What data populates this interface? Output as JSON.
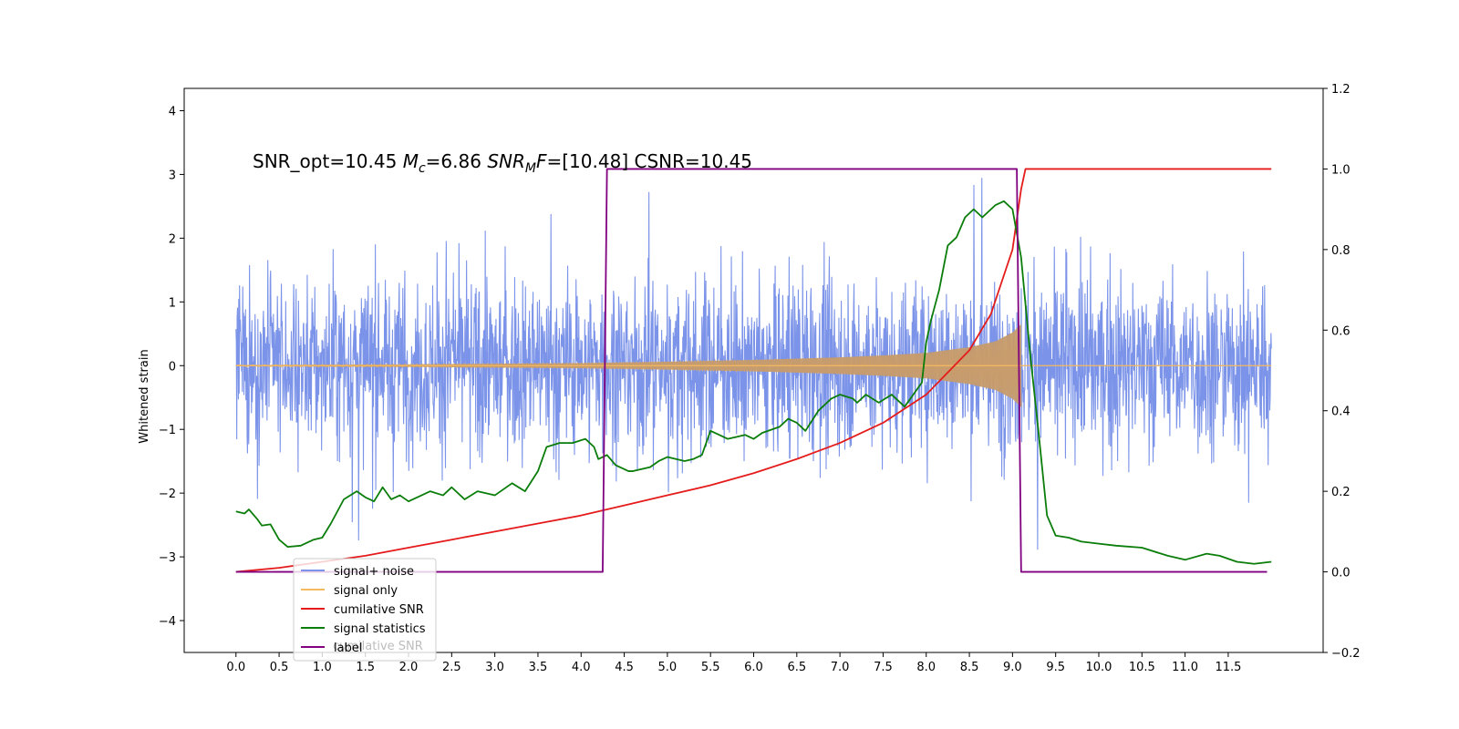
{
  "chart_data": {
    "type": "line",
    "annotation": {
      "snr_opt": "SNR_opt=10.45",
      "mc_symbol": "M",
      "mc_sub": "c",
      "mc_value": "=6.86",
      "snrmf_symbol": "SNR",
      "snrmf_sub": "M",
      "snrmf_tail": "F",
      "snrmf_value": "=[10.48]",
      "csnr": "CSNR=10.45"
    },
    "ylabel": "Whitened strain",
    "xlim": [
      -0.6,
      12.6
    ],
    "ylim": [
      -4.5,
      4.35
    ],
    "y2lim": [
      -0.2,
      1.2
    ],
    "x_ticks": [
      "0.0",
      "0.5",
      "1.0",
      "1.5",
      "2.0",
      "2.5",
      "3.0",
      "3.5",
      "4.0",
      "4.5",
      "5.0",
      "5.5",
      "6.0",
      "6.5",
      "7.0",
      "7.5",
      "8.0",
      "8.5",
      "9.0",
      "9.5",
      "10.0",
      "10.5",
      "11.0",
      "11.5"
    ],
    "y_ticks": [
      "−4",
      "−3",
      "−2",
      "−1",
      "0",
      "1",
      "2",
      "3",
      "4"
    ],
    "y2_ticks": [
      "−0.2",
      "0.0",
      "0.2",
      "0.4",
      "0.6",
      "0.8",
      "1.0",
      "1.2"
    ],
    "y_tick_values": [
      -4,
      -3,
      -2,
      -1,
      0,
      1,
      2,
      3,
      4
    ],
    "y2_tick_values": [
      -0.2,
      0.0,
      0.2,
      0.4,
      0.6,
      0.8,
      1.0,
      1.2
    ],
    "legend": {
      "placement": "lower-left",
      "entries": [
        "signal+ noise",
        "signal only",
        "cumilative SNR",
        "signal statistics",
        "label"
      ],
      "ghost_text": "cumilative SNR"
    },
    "series": [
      {
        "name": "signal+ noise",
        "axis": "left",
        "color": "#7b93e8",
        "description": "noise band approximately +/-1.6 with spikes up to +/-3.5",
        "x_range": [
          0.0,
          12.0
        ],
        "band": 1.6
      },
      {
        "name": "signal only",
        "axis": "left",
        "color": "#f5b95f",
        "description": "chirp growing from ~0.01 to ~0.65 amplitude, ending at 9.1",
        "x_range": [
          0.0,
          9.1
        ],
        "envelope": [
          [
            0.0,
            0.01
          ],
          [
            2.0,
            0.02
          ],
          [
            4.0,
            0.04
          ],
          [
            5.0,
            0.06
          ],
          [
            6.0,
            0.09
          ],
          [
            7.0,
            0.13
          ],
          [
            7.5,
            0.16
          ],
          [
            8.0,
            0.2
          ],
          [
            8.5,
            0.29
          ],
          [
            8.8,
            0.38
          ],
          [
            9.0,
            0.52
          ],
          [
            9.1,
            0.65
          ]
        ]
      },
      {
        "name": "cumilative SNR",
        "axis": "right",
        "color": "#e51b1b",
        "points": [
          [
            0.0,
            0.0
          ],
          [
            0.5,
            0.01
          ],
          [
            1.0,
            0.025
          ],
          [
            1.5,
            0.04
          ],
          [
            2.0,
            0.06
          ],
          [
            2.5,
            0.08
          ],
          [
            3.0,
            0.1
          ],
          [
            3.5,
            0.12
          ],
          [
            4.0,
            0.14
          ],
          [
            4.5,
            0.165
          ],
          [
            5.0,
            0.19
          ],
          [
            5.5,
            0.215
          ],
          [
            6.0,
            0.245
          ],
          [
            6.5,
            0.28
          ],
          [
            7.0,
            0.32
          ],
          [
            7.5,
            0.37
          ],
          [
            8.0,
            0.44
          ],
          [
            8.5,
            0.55
          ],
          [
            8.75,
            0.64
          ],
          [
            9.0,
            0.8
          ],
          [
            9.1,
            0.95
          ],
          [
            9.15,
            1.0
          ],
          [
            12.0,
            1.0
          ]
        ]
      },
      {
        "name": "signal statistics",
        "axis": "right",
        "color": "#0a7d0a",
        "points": [
          [
            0.0,
            0.15
          ],
          [
            0.1,
            0.145
          ],
          [
            0.15,
            0.155
          ],
          [
            0.25,
            0.13
          ],
          [
            0.3,
            0.115
          ],
          [
            0.4,
            0.118
          ],
          [
            0.5,
            0.08
          ],
          [
            0.6,
            0.062
          ],
          [
            0.75,
            0.065
          ],
          [
            0.9,
            0.08
          ],
          [
            1.0,
            0.085
          ],
          [
            1.1,
            0.12
          ],
          [
            1.25,
            0.18
          ],
          [
            1.4,
            0.2
          ],
          [
            1.5,
            0.185
          ],
          [
            1.6,
            0.175
          ],
          [
            1.7,
            0.21
          ],
          [
            1.8,
            0.18
          ],
          [
            1.9,
            0.19
          ],
          [
            2.0,
            0.175
          ],
          [
            2.1,
            0.185
          ],
          [
            2.25,
            0.2
          ],
          [
            2.4,
            0.19
          ],
          [
            2.5,
            0.21
          ],
          [
            2.65,
            0.18
          ],
          [
            2.8,
            0.2
          ],
          [
            3.0,
            0.19
          ],
          [
            3.2,
            0.22
          ],
          [
            3.35,
            0.2
          ],
          [
            3.5,
            0.25
          ],
          [
            3.6,
            0.31
          ],
          [
            3.75,
            0.32
          ],
          [
            3.9,
            0.32
          ],
          [
            4.05,
            0.33
          ],
          [
            4.15,
            0.31
          ],
          [
            4.2,
            0.28
          ],
          [
            4.3,
            0.29
          ],
          [
            4.4,
            0.265
          ],
          [
            4.55,
            0.25
          ],
          [
            4.6,
            0.25
          ],
          [
            4.8,
            0.26
          ],
          [
            4.9,
            0.275
          ],
          [
            5.0,
            0.285
          ],
          [
            5.2,
            0.275
          ],
          [
            5.3,
            0.28
          ],
          [
            5.4,
            0.29
          ],
          [
            5.5,
            0.35
          ],
          [
            5.6,
            0.34
          ],
          [
            5.7,
            0.33
          ],
          [
            5.8,
            0.335
          ],
          [
            5.9,
            0.34
          ],
          [
            6.0,
            0.33
          ],
          [
            6.1,
            0.345
          ],
          [
            6.3,
            0.36
          ],
          [
            6.4,
            0.38
          ],
          [
            6.5,
            0.37
          ],
          [
            6.6,
            0.35
          ],
          [
            6.75,
            0.4
          ],
          [
            6.9,
            0.43
          ],
          [
            7.0,
            0.44
          ],
          [
            7.15,
            0.43
          ],
          [
            7.2,
            0.42
          ],
          [
            7.3,
            0.44
          ],
          [
            7.45,
            0.42
          ],
          [
            7.6,
            0.44
          ],
          [
            7.75,
            0.41
          ],
          [
            7.85,
            0.44
          ],
          [
            7.95,
            0.47
          ],
          [
            8.0,
            0.57
          ],
          [
            8.05,
            0.62
          ],
          [
            8.15,
            0.7
          ],
          [
            8.25,
            0.81
          ],
          [
            8.35,
            0.83
          ],
          [
            8.45,
            0.88
          ],
          [
            8.55,
            0.9
          ],
          [
            8.65,
            0.88
          ],
          [
            8.8,
            0.91
          ],
          [
            8.9,
            0.92
          ],
          [
            9.0,
            0.9
          ],
          [
            9.1,
            0.78
          ],
          [
            9.2,
            0.55
          ],
          [
            9.3,
            0.35
          ],
          [
            9.4,
            0.14
          ],
          [
            9.5,
            0.09
          ],
          [
            9.65,
            0.085
          ],
          [
            9.8,
            0.075
          ],
          [
            10.0,
            0.07
          ],
          [
            10.2,
            0.065
          ],
          [
            10.5,
            0.06
          ],
          [
            10.8,
            0.04
          ],
          [
            11.0,
            0.03
          ],
          [
            11.25,
            0.045
          ],
          [
            11.4,
            0.04
          ],
          [
            11.6,
            0.025
          ],
          [
            11.8,
            0.02
          ],
          [
            12.0,
            0.025
          ]
        ]
      },
      {
        "name": "label",
        "axis": "right",
        "color": "#800080",
        "points": [
          [
            0.0,
            0.0
          ],
          [
            4.25,
            0.0
          ],
          [
            4.3,
            1.0
          ],
          [
            9.05,
            1.0
          ],
          [
            9.1,
            0.0
          ],
          [
            11.95,
            0.0
          ]
        ]
      }
    ]
  }
}
